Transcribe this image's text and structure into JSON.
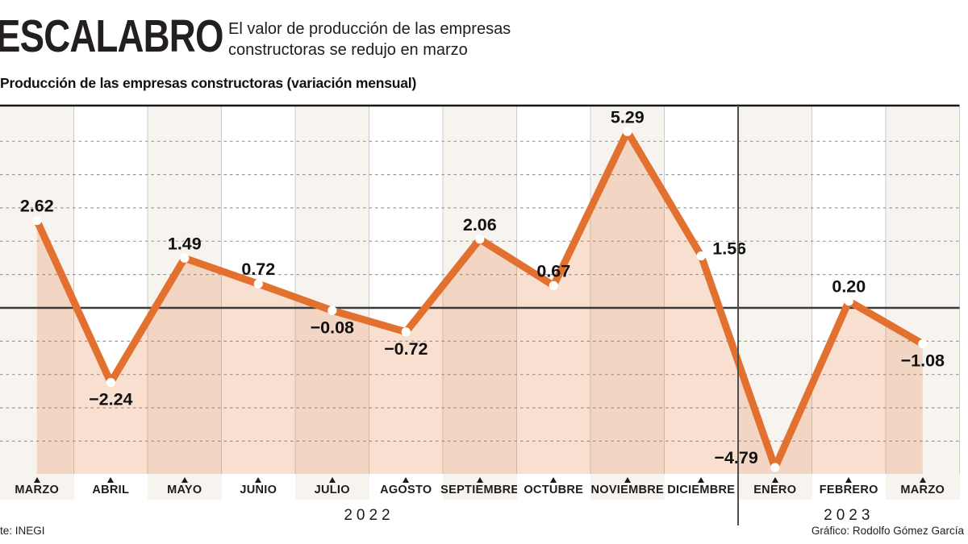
{
  "header": {
    "title": "ESCALABRO",
    "subtitle_line1": "El valor de producción de las empresas",
    "subtitle_line2": "constructoras se redujo en marzo",
    "chart_subtitle": "Producción de las empresas constructoras (variación mensual)"
  },
  "footer": {
    "source": "te: INEGI",
    "credit": "Gráfico: Rodolfo Gómez García"
  },
  "chart_data": {
    "type": "line",
    "title": "Producción de las empresas constructoras (variación mensual)",
    "categories": [
      "MARZO",
      "ABRIL",
      "MAYO",
      "JUNIO",
      "JULIO",
      "AGOSTO",
      "SEPTIEMBRE",
      "OCTUBRE",
      "NOVIEMBRE",
      "DICIEMBRE",
      "ENERO",
      "FEBRERO",
      "MARZO"
    ],
    "values": [
      2.62,
      -2.24,
      1.49,
      0.72,
      -0.08,
      -0.72,
      2.06,
      0.67,
      5.29,
      1.56,
      -4.79,
      0.2,
      -1.08
    ],
    "value_labels": [
      "2.62",
      "−2.24",
      "1.49",
      "0.72",
      "−0.08",
      "−0.72",
      "2.06",
      "0.67",
      "5.29",
      "1.56",
      "−4.79",
      "0.20",
      "−1.08"
    ],
    "label_placement": [
      "above",
      "below",
      "above",
      "above",
      "below",
      "below",
      "above",
      "above",
      "above",
      "right-up",
      "left-up",
      "above",
      "below"
    ],
    "year_groups": [
      {
        "label": "2022",
        "from": 0,
        "to": 9
      },
      {
        "label": "2023",
        "from": 10,
        "to": 12
      }
    ],
    "ylim": [
      -5.0,
      6.05
    ],
    "gridlines": "dashed horizontal lines at each integer value, solid dark zero line, solid top border",
    "legend": "none",
    "colors": {
      "line": "#e2702e",
      "marker_fill": "#ffffff",
      "area_fill": "rgba(226,110,42,0.22)",
      "band_beige": "#f7f3ee",
      "band_white": "#ffffff",
      "grid_dash": "#9a9a9a",
      "zero_line": "#3a3a3a",
      "top_border": "#161616",
      "column_line": "#cccccc",
      "year_divider": "#4d4d4d",
      "text": "#111111"
    }
  }
}
